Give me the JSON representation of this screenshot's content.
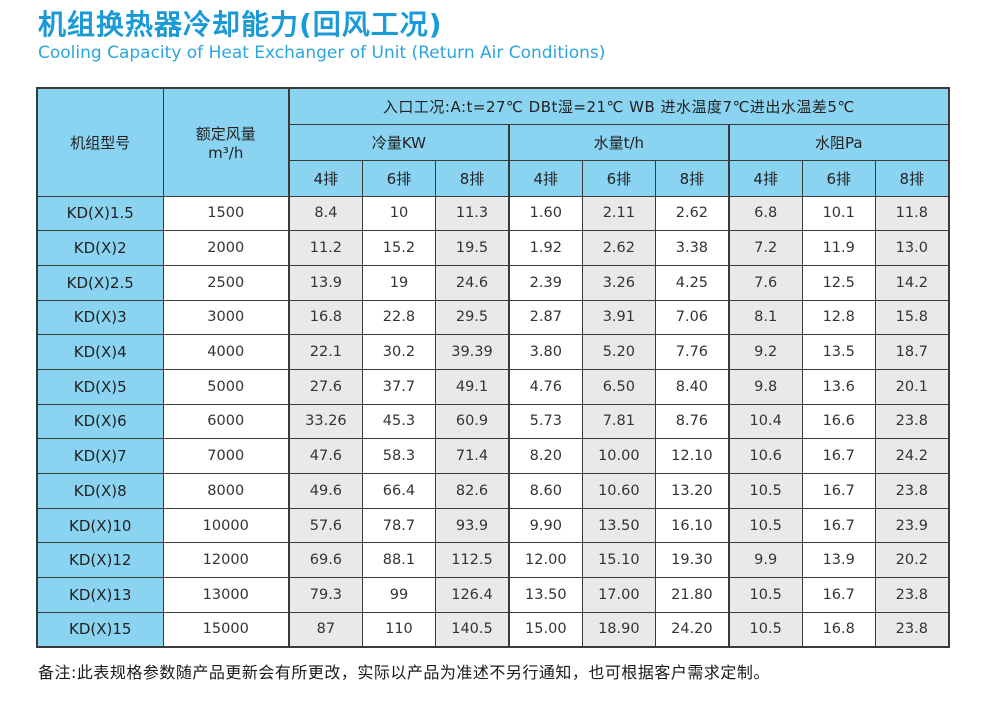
{
  "page": {
    "title_zh": "机组换热器冷却能力(回风工况)",
    "title_en": "Cooling Capacity of Heat Exchanger of Unit (Return Air Conditions)",
    "note": "备注:此表规格参数随产品更新会有所更改，实际以产品为准述不另行通知，也可根据客户需求定制。"
  },
  "colors": {
    "title_blue": "#1b9ad8",
    "subtitle_blue": "#2ba5de",
    "header_blue": "#8ad4f1",
    "shade_gray": "#e9e9e9",
    "border_dark": "#3a3a3a"
  },
  "table": {
    "col_model": "机组型号",
    "col_airflow_line1": "额定风量",
    "col_airflow_line2": "m³/h",
    "inlet_header": "入口工况:A:t=27℃ DBt湿=21℃ WB  进水温度7℃进出水温差5℃",
    "group_labels": [
      "冷量KW",
      "水量t/h",
      "水阻Pa"
    ],
    "sub_cols": [
      "4排",
      "6排",
      "8排"
    ],
    "rows": [
      {
        "model": "KD(X)1.5",
        "airflow": "1500",
        "values": [
          "8.4",
          "10",
          "11.3",
          "1.60",
          "2.11",
          "2.62",
          "6.8",
          "10.1",
          "11.8"
        ]
      },
      {
        "model": "KD(X)2",
        "airflow": "2000",
        "values": [
          "11.2",
          "15.2",
          "19.5",
          "1.92",
          "2.62",
          "3.38",
          "7.2",
          "11.9",
          "13.0"
        ]
      },
      {
        "model": "KD(X)2.5",
        "airflow": "2500",
        "values": [
          "13.9",
          "19",
          "24.6",
          "2.39",
          "3.26",
          "4.25",
          "7.6",
          "12.5",
          "14.2"
        ]
      },
      {
        "model": "KD(X)3",
        "airflow": "3000",
        "values": [
          "16.8",
          "22.8",
          "29.5",
          "2.87",
          "3.91",
          "7.06",
          "8.1",
          "12.8",
          "15.8"
        ]
      },
      {
        "model": "KD(X)4",
        "airflow": "4000",
        "values": [
          "22.1",
          "30.2",
          "39.39",
          "3.80",
          "5.20",
          "7.76",
          "9.2",
          "13.5",
          "18.7"
        ]
      },
      {
        "model": "KD(X)5",
        "airflow": "5000",
        "values": [
          "27.6",
          "37.7",
          "49.1",
          "4.76",
          "6.50",
          "8.40",
          "9.8",
          "13.6",
          "20.1"
        ]
      },
      {
        "model": "KD(X)6",
        "airflow": "6000",
        "values": [
          "33.26",
          "45.3",
          "60.9",
          "5.73",
          "7.81",
          "8.76",
          "10.4",
          "16.6",
          "23.8"
        ]
      },
      {
        "model": "KD(X)7",
        "airflow": "7000",
        "values": [
          "47.6",
          "58.3",
          "71.4",
          "8.20",
          "10.00",
          "12.10",
          "10.6",
          "16.7",
          "24.2"
        ]
      },
      {
        "model": "KD(X)8",
        "airflow": "8000",
        "values": [
          "49.6",
          "66.4",
          "82.6",
          "8.60",
          "10.60",
          "13.20",
          "10.5",
          "16.7",
          "23.8"
        ]
      },
      {
        "model": "KD(X)10",
        "airflow": "10000",
        "values": [
          "57.6",
          "78.7",
          "93.9",
          "9.90",
          "13.50",
          "16.10",
          "10.5",
          "16.7",
          "23.9"
        ]
      },
      {
        "model": "KD(X)12",
        "airflow": "12000",
        "values": [
          "69.6",
          "88.1",
          "112.5",
          "12.00",
          "15.10",
          "19.30",
          "9.9",
          "13.9",
          "20.2"
        ]
      },
      {
        "model": "KD(X)13",
        "airflow": "13000",
        "values": [
          "79.3",
          "99",
          "126.4",
          "13.50",
          "17.00",
          "21.80",
          "10.5",
          "16.7",
          "23.8"
        ]
      },
      {
        "model": "KD(X)15",
        "airflow": "15000",
        "values": [
          "87",
          "110",
          "140.5",
          "15.00",
          "18.90",
          "24.20",
          "10.5",
          "16.8",
          "23.8"
        ]
      }
    ]
  }
}
